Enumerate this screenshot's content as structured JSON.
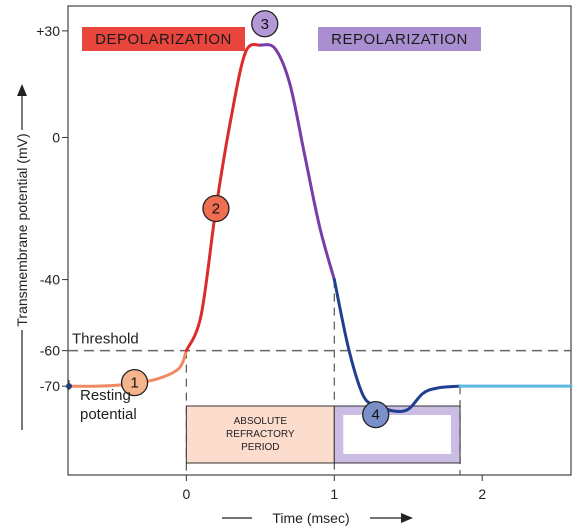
{
  "chart_data": {
    "type": "line",
    "title": "",
    "xlabel": "Time (msec)",
    "ylabel": "Transmembrane potential (mV)",
    "xlim": [
      -0.8,
      2.6
    ],
    "ylim": [
      -95,
      37
    ],
    "xticks": [
      {
        "value": 0,
        "label": "0"
      },
      {
        "value": 1,
        "label": "1"
      },
      {
        "value": 2,
        "label": "2"
      }
    ],
    "yticks": [
      {
        "value": 30,
        "label": "+30"
      },
      {
        "value": 0,
        "label": "0"
      },
      {
        "value": -40,
        "label": "-40"
      },
      {
        "value": -60,
        "label": "-60"
      },
      {
        "value": -70,
        "label": "-70"
      }
    ],
    "threshold": {
      "value": -60,
      "label": "Threshold"
    },
    "resting_label": [
      "Resting",
      "potential"
    ],
    "phases": [
      {
        "label": "DEPOLARIZATION",
        "fill": "#e8453c",
        "text_color": "#1a1a1a"
      },
      {
        "label": "REPOLARIZATION",
        "fill": "#a98fcf",
        "text_color": "#1a1a1a"
      }
    ],
    "series": [
      {
        "segments": [
          {
            "color": "#f08a62",
            "points": [
              [
                -0.8,
                -70
              ],
              [
                -0.6,
                -70
              ],
              [
                -0.4,
                -69.5
              ],
              [
                -0.2,
                -68
              ],
              [
                -0.05,
                -65
              ],
              [
                0,
                -60
              ]
            ]
          },
          {
            "color": "#dc2b2b",
            "points": [
              [
                0,
                -60
              ],
              [
                0.1,
                -50
              ],
              [
                0.2,
                -20
              ],
              [
                0.3,
                5
              ],
              [
                0.4,
                24
              ],
              [
                0.5,
                26
              ]
            ]
          },
          {
            "color": "#7a3ca8",
            "points": [
              [
                0.5,
                26
              ],
              [
                0.6,
                25
              ],
              [
                0.7,
                15
              ],
              [
                0.8,
                -5
              ],
              [
                0.9,
                -25
              ],
              [
                1.0,
                -40
              ]
            ]
          },
          {
            "color": "#1f3f8f",
            "points": [
              [
                1.0,
                -40
              ],
              [
                1.1,
                -60
              ],
              [
                1.2,
                -73
              ],
              [
                1.3,
                -75.5
              ],
              [
                1.4,
                -77
              ],
              [
                1.5,
                -76.5
              ],
              [
                1.6,
                -72
              ],
              [
                1.7,
                -70.5
              ],
              [
                1.85,
                -70
              ]
            ]
          },
          {
            "color": "#5bb6e0",
            "points": [
              [
                1.85,
                -70
              ],
              [
                2.2,
                -70
              ],
              [
                2.6,
                -70
              ]
            ]
          }
        ]
      }
    ],
    "markers": [
      {
        "label": "1",
        "x": -0.35,
        "y": -69,
        "fill": "#f6b48c"
      },
      {
        "label": "2",
        "x": 0.2,
        "y": -20,
        "fill": "#ef6d50"
      },
      {
        "label": "3",
        "x": 0.53,
        "y": 32,
        "fill": "#b39ad6"
      },
      {
        "label": "4",
        "x": 1.28,
        "y": -78,
        "fill": "#7b8fc9"
      }
    ],
    "refractory": {
      "absolute_label": [
        "ABSOLUTE",
        "REFRACTORY",
        "PERIOD"
      ],
      "absolute_range": [
        0,
        1
      ],
      "relative_range": [
        1,
        1.85
      ]
    }
  }
}
